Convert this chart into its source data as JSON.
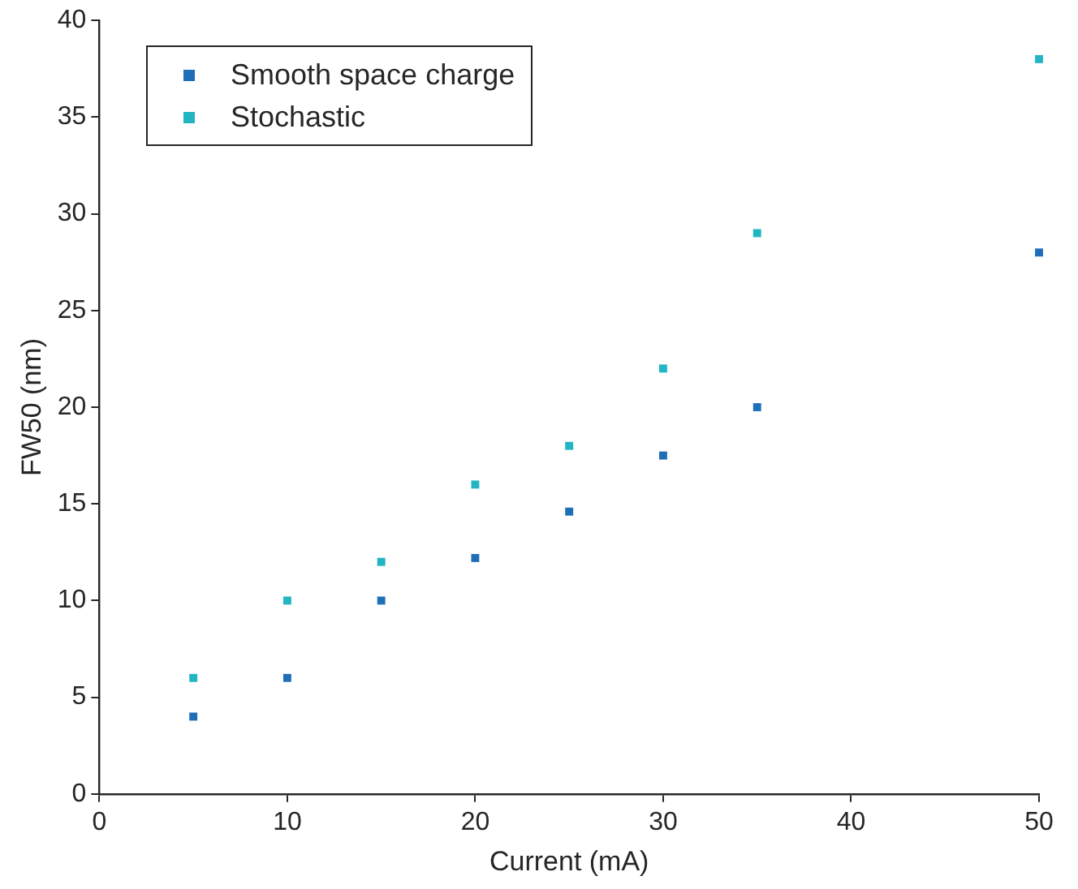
{
  "chart_data": {
    "type": "scatter",
    "xlabel": "Current (mA)",
    "ylabel": "FW50 (nm)",
    "x": [
      5,
      10,
      15,
      20,
      25,
      30,
      35,
      50
    ],
    "series": [
      {
        "name": "Smooth space charge",
        "color": "#1f6fb8",
        "values": [
          4,
          6,
          10,
          12.2,
          14.6,
          17.5,
          20,
          28
        ]
      },
      {
        "name": "Stochastic",
        "color": "#22b5c3",
        "values": [
          6,
          10,
          12,
          16,
          18,
          22,
          29,
          38
        ]
      }
    ],
    "xlim": [
      0,
      50
    ],
    "xticks": [
      0,
      10,
      20,
      30,
      40,
      50
    ],
    "ylim": [
      0,
      40
    ],
    "yticks": [
      0,
      5,
      10,
      15,
      20,
      25,
      30,
      35,
      40
    ],
    "grid": false,
    "legend": "top left",
    "marker": "square"
  }
}
